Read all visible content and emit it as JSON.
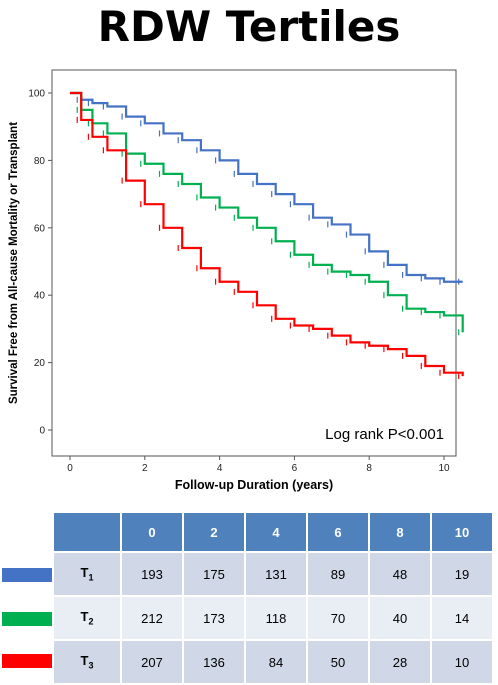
{
  "title": "RDW Tertiles",
  "chart_data": {
    "type": "line",
    "subtype": "kaplan-meier",
    "xlabel": "Follow-up Duration (years)",
    "ylabel": "Survival Free from All-cause Mortality or Transplant",
    "xlim": [
      0,
      10.5
    ],
    "ylim": [
      0,
      100
    ],
    "xticks": [
      0,
      2,
      4,
      6,
      8,
      10
    ],
    "yticks": [
      0,
      20,
      40,
      60,
      80,
      100
    ],
    "grid": false,
    "annotation": "Log rank P<0.001",
    "series": [
      {
        "color": "#4472c4",
        "points": [
          [
            0,
            100
          ],
          [
            0.3,
            98
          ],
          [
            0.6,
            97
          ],
          [
            1,
            96
          ],
          [
            1.5,
            93
          ],
          [
            2,
            91
          ],
          [
            2.5,
            88
          ],
          [
            3,
            86
          ],
          [
            3.5,
            83
          ],
          [
            4,
            80
          ],
          [
            4.5,
            76
          ],
          [
            5,
            73
          ],
          [
            5.5,
            70
          ],
          [
            6,
            67
          ],
          [
            6.5,
            63
          ],
          [
            7,
            61
          ],
          [
            7.5,
            58
          ],
          [
            8,
            53
          ],
          [
            8.5,
            49
          ],
          [
            9,
            46
          ],
          [
            9.5,
            45
          ],
          [
            10,
            44
          ],
          [
            10.5,
            44
          ]
        ]
      },
      {
        "color": "#00b050",
        "points": [
          [
            0,
            100
          ],
          [
            0.3,
            95
          ],
          [
            0.6,
            91
          ],
          [
            1,
            88
          ],
          [
            1.5,
            82
          ],
          [
            2,
            79
          ],
          [
            2.5,
            76
          ],
          [
            3,
            73
          ],
          [
            3.5,
            69
          ],
          [
            4,
            66
          ],
          [
            4.5,
            63
          ],
          [
            5,
            60
          ],
          [
            5.5,
            56
          ],
          [
            6,
            52
          ],
          [
            6.5,
            49
          ],
          [
            7,
            47
          ],
          [
            7.5,
            46
          ],
          [
            8,
            44
          ],
          [
            8.5,
            40
          ],
          [
            9,
            36
          ],
          [
            9.5,
            35
          ],
          [
            10,
            34
          ],
          [
            10.5,
            29
          ]
        ]
      },
      {
        "color": "#ff0000",
        "points": [
          [
            0,
            100
          ],
          [
            0.3,
            92
          ],
          [
            0.6,
            87
          ],
          [
            1,
            83
          ],
          [
            1.5,
            74
          ],
          [
            2,
            67
          ],
          [
            2.5,
            60
          ],
          [
            3,
            54
          ],
          [
            3.5,
            48
          ],
          [
            4,
            44
          ],
          [
            4.5,
            41
          ],
          [
            5,
            37
          ],
          [
            5.5,
            33
          ],
          [
            6,
            31
          ],
          [
            6.5,
            30
          ],
          [
            7,
            28
          ],
          [
            7.5,
            26
          ],
          [
            8,
            25
          ],
          [
            8.5,
            24
          ],
          [
            9,
            22
          ],
          [
            9.5,
            19
          ],
          [
            10,
            17
          ],
          [
            10.5,
            16
          ]
        ]
      }
    ]
  },
  "risk_table": {
    "header": [
      "",
      "0",
      "2",
      "4",
      "6",
      "8",
      "10"
    ],
    "rows": [
      {
        "label": "T",
        "sub": "1",
        "color": "#4472c4",
        "values": [
          "193",
          "175",
          "131",
          "89",
          "48",
          "19"
        ]
      },
      {
        "label": "T",
        "sub": "2",
        "color": "#00b050",
        "values": [
          "212",
          "173",
          "118",
          "70",
          "40",
          "14"
        ]
      },
      {
        "label": "T",
        "sub": "3",
        "color": "#ff0000",
        "values": [
          "207",
          "136",
          "84",
          "50",
          "28",
          "10"
        ]
      }
    ]
  }
}
